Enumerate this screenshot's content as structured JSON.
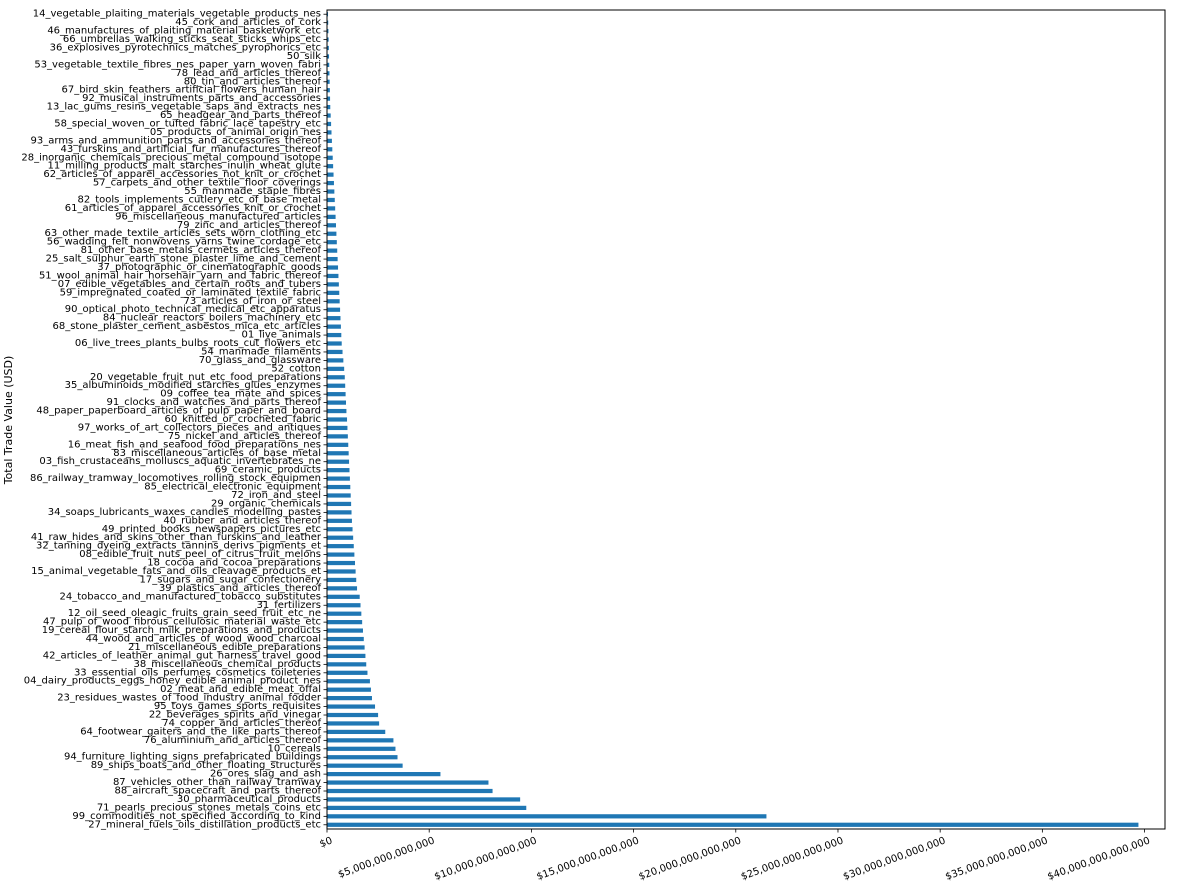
{
  "chart_data": {
    "type": "bar",
    "orientation": "horizontal",
    "title": "",
    "xlabel": "",
    "ylabel": "Total Trade Value (USD)",
    "xlim": [
      0,
      41000000000000
    ],
    "bar_color": "#1f77b4",
    "grid": false,
    "legend": "none",
    "xticks": [
      {
        "value": 0,
        "label": "$0"
      },
      {
        "value": 5000000000000,
        "label": "$5,000,000,000,000"
      },
      {
        "value": 10000000000000,
        "label": "$10,000,000,000,000"
      },
      {
        "value": 15000000000000,
        "label": "$15,000,000,000,000"
      },
      {
        "value": 20000000000000,
        "label": "$20,000,000,000,000"
      },
      {
        "value": 25000000000000,
        "label": "$25,000,000,000,000"
      },
      {
        "value": 30000000000000,
        "label": "$30,000,000,000,000"
      },
      {
        "value": 35000000000000,
        "label": "$35,000,000,000,000"
      },
      {
        "value": 40000000000000,
        "label": "$40,000,000,000,000"
      }
    ],
    "bars": [
      {
        "label": "14_vegetable_plaiting_materials_vegetable_products_nes",
        "value": 50000000000
      },
      {
        "label": "45_cork_and_articles_of_cork",
        "value": 60000000000
      },
      {
        "label": "46_manufactures_of_plaiting_material_basketwork_etc",
        "value": 70000000000
      },
      {
        "label": "66_umbrellas_walking_sticks_seat_sticks_whips_etc",
        "value": 80000000000
      },
      {
        "label": "36_explosives_pyrotechnics_matches_pyrophorics_etc",
        "value": 90000000000
      },
      {
        "label": "50_silk",
        "value": 100000000000
      },
      {
        "label": "53_vegetable_textile_fibres_nes_paper_yarn_woven_fabri",
        "value": 110000000000
      },
      {
        "label": "78_lead_and_articles_thereof",
        "value": 120000000000
      },
      {
        "label": "80_tin_and_articles_thereof",
        "value": 130000000000
      },
      {
        "label": "67_bird_skin_feathers_artificial_flowers_human_hair",
        "value": 140000000000
      },
      {
        "label": "92_musical_instruments_parts_and_accessories",
        "value": 150000000000
      },
      {
        "label": "13_lac_gums_resins_vegetable_saps_and_extracts_nes",
        "value": 160000000000
      },
      {
        "label": "65_headgear_and_parts_thereof",
        "value": 180000000000
      },
      {
        "label": "58_special_woven_or_tufted_fabric_lace_tapestry_etc",
        "value": 200000000000
      },
      {
        "label": "05_products_of_animal_origin_nes",
        "value": 220000000000
      },
      {
        "label": "93_arms_and_ammunition_parts_and_accessories_thereof",
        "value": 240000000000
      },
      {
        "label": "43_furskins_and_artificial_fur_manufactures_thereof",
        "value": 260000000000
      },
      {
        "label": "28_inorganic_chemicals_precious_metal_compound_isotope",
        "value": 280000000000
      },
      {
        "label": "11_milling_products_malt_starches_inulin_wheat_glute",
        "value": 300000000000
      },
      {
        "label": "62_articles_of_apparel_accessories_not_knit_or_crochet",
        "value": 320000000000
      },
      {
        "label": "57_carpets_and_other_textile_floor_coverings",
        "value": 340000000000
      },
      {
        "label": "55_manmade_staple_fibres",
        "value": 360000000000
      },
      {
        "label": "82_tools_implements_cutlery_etc_of_base_metal",
        "value": 380000000000
      },
      {
        "label": "61_articles_of_apparel_accessories_knit_or_crochet",
        "value": 400000000000
      },
      {
        "label": "96_miscellaneous_manufactured_articles",
        "value": 420000000000
      },
      {
        "label": "79_zinc_and_articles_thereof",
        "value": 440000000000
      },
      {
        "label": "63_other_made_textile_articles_sets_worn_clothing_etc",
        "value": 460000000000
      },
      {
        "label": "56_wadding_felt_nonwovens_yarns_twine_cordage_etc",
        "value": 480000000000
      },
      {
        "label": "81_other_base_metals_cermets_articles_thereof",
        "value": 500000000000
      },
      {
        "label": "25_salt_sulphur_earth_stone_plaster_lime_and_cement",
        "value": 520000000000
      },
      {
        "label": "37_photographic_or_cinematographic_goods",
        "value": 540000000000
      },
      {
        "label": "51_wool_animal_hair_horsehair_yarn_and_fabric_thereof",
        "value": 560000000000
      },
      {
        "label": "07_edible_vegetables_and_certain_roots_and_tubers",
        "value": 580000000000
      },
      {
        "label": "59_impregnated_coated_or_laminated_textile_fabric",
        "value": 600000000000
      },
      {
        "label": "73_articles_of_iron_or_steel",
        "value": 620000000000
      },
      {
        "label": "90_optical_photo_technical_medical_etc_apparatus",
        "value": 640000000000
      },
      {
        "label": "84_nuclear_reactors_boilers_machinery_etc",
        "value": 660000000000
      },
      {
        "label": "68_stone_plaster_cement_asbestos_mica_etc_articles",
        "value": 680000000000
      },
      {
        "label": "01_live_animals",
        "value": 700000000000
      },
      {
        "label": "06_live_trees_plants_bulbs_roots_cut_flowers_etc",
        "value": 720000000000
      },
      {
        "label": "54_manmade_filaments",
        "value": 760000000000
      },
      {
        "label": "70_glass_and_glassware",
        "value": 800000000000
      },
      {
        "label": "52_cotton",
        "value": 840000000000
      },
      {
        "label": "20_vegetable_fruit_nut_etc_food_preparations",
        "value": 870000000000
      },
      {
        "label": "35_albuminoids_modified_starches_glues_enzymes",
        "value": 890000000000
      },
      {
        "label": "09_coffee_tea_mate_and_spices",
        "value": 910000000000
      },
      {
        "label": "91_clocks_and_watches_and_parts_thereof",
        "value": 930000000000
      },
      {
        "label": "48_paper_paperboard_articles_of_pulp_paper_and_board",
        "value": 950000000000
      },
      {
        "label": "60_knitted_or_crocheted_fabric",
        "value": 980000000000
      },
      {
        "label": "97_works_of_art_collectors_pieces_and_antiques",
        "value": 1000000000000
      },
      {
        "label": "75_nickel_and_articles_thereof",
        "value": 1020000000000
      },
      {
        "label": "16_meat_fish_and_seafood_food_preparations_nes",
        "value": 1040000000000
      },
      {
        "label": "83_miscellaneous_articles_of_base_metal",
        "value": 1060000000000
      },
      {
        "label": "03_fish_crustaceans_molluscs_aquatic_invertebrates_ne",
        "value": 1080000000000
      },
      {
        "label": "69_ceramic_products",
        "value": 1100000000000
      },
      {
        "label": "86_railway_tramway_locomotives_rolling_stock_equipmen",
        "value": 1120000000000
      },
      {
        "label": "85_electrical_electronic_equipment",
        "value": 1140000000000
      },
      {
        "label": "72_iron_and_steel",
        "value": 1160000000000
      },
      {
        "label": "29_organic_chemicals",
        "value": 1180000000000
      },
      {
        "label": "34_soaps_lubricants_waxes_candles_modelling_pastes",
        "value": 1200000000000
      },
      {
        "label": "40_rubber_and_articles_thereof",
        "value": 1220000000000
      },
      {
        "label": "49_printed_books_newspapers_pictures_etc",
        "value": 1250000000000
      },
      {
        "label": "41_raw_hides_and_skins_other_than_furskins_and_leather",
        "value": 1280000000000
      },
      {
        "label": "32_tanning_dyeing_extracts_tannins_derivs_pigments_et",
        "value": 1310000000000
      },
      {
        "label": "08_edible_fruit_nuts_peel_of_citrus_fruit_melons",
        "value": 1340000000000
      },
      {
        "label": "18_cocoa_and_cocoa_preparations",
        "value": 1370000000000
      },
      {
        "label": "15_animal_vegetable_fats_and_oils_cleavage_products_et",
        "value": 1400000000000
      },
      {
        "label": "17_sugars_and_sugar_confectionery",
        "value": 1430000000000
      },
      {
        "label": "39_plastics_and_articles_thereof",
        "value": 1470000000000
      },
      {
        "label": "24_tobacco_and_manufactured_tobacco_substitutes",
        "value": 1600000000000
      },
      {
        "label": "31_fertilizers",
        "value": 1640000000000
      },
      {
        "label": "12_oil_seed_oleagic_fruits_grain_seed_fruit_etc_ne",
        "value": 1680000000000
      },
      {
        "label": "47_pulp_of_wood_fibrous_cellulosic_material_waste_etc",
        "value": 1720000000000
      },
      {
        "label": "19_cereal_flour_starch_milk_preparations_and_products",
        "value": 1760000000000
      },
      {
        "label": "44_wood_and_articles_of_wood_wood_charcoal",
        "value": 1800000000000
      },
      {
        "label": "21_miscellaneous_edible_preparations",
        "value": 1840000000000
      },
      {
        "label": "42_articles_of_leather_animal_gut_harness_travel_good",
        "value": 1880000000000
      },
      {
        "label": "38_miscellaneous_chemical_products",
        "value": 1920000000000
      },
      {
        "label": "33_essential_oils_perfumes_cosmetics_toileteries",
        "value": 1980000000000
      },
      {
        "label": "04_dairy_products_eggs_honey_edible_animal_product_nes",
        "value": 2100000000000
      },
      {
        "label": "02_meat_and_edible_meat_offal",
        "value": 2150000000000
      },
      {
        "label": "23_residues_wastes_of_food_industry_animal_fodder",
        "value": 2200000000000
      },
      {
        "label": "95_toys_games_sports_requisites",
        "value": 2350000000000
      },
      {
        "label": "22_beverages_spirits_and_vinegar",
        "value": 2500000000000
      },
      {
        "label": "74_copper_and_articles_thereof",
        "value": 2550000000000
      },
      {
        "label": "64_footwear_gaiters_and_the_like_parts_thereof",
        "value": 2850000000000
      },
      {
        "label": "76_aluminium_and_articles_thereof",
        "value": 3250000000000
      },
      {
        "label": "10_cereals",
        "value": 3350000000000
      },
      {
        "label": "94_furniture_lighting_signs_prefabricated_buildings",
        "value": 3450000000000
      },
      {
        "label": "89_ships_boats_and_other_floating_structures",
        "value": 3700000000000
      },
      {
        "label": "26_ores_slag_and_ash",
        "value": 5550000000000
      },
      {
        "label": "87_vehicles_other_than_railway_tramway",
        "value": 7900000000000
      },
      {
        "label": "88_aircraft_spacecraft_and_parts_thereof",
        "value": 8100000000000
      },
      {
        "label": "30_pharmaceutical_products",
        "value": 9450000000000
      },
      {
        "label": "71_pearls_precious_stones_metals_coins_etc",
        "value": 9750000000000
      },
      {
        "label": "99_commodities_not_specified_according_to_kind",
        "value": 21500000000000
      },
      {
        "label": "27_mineral_fuels_oils_distillation_products_etc",
        "value": 39700000000000
      }
    ]
  }
}
